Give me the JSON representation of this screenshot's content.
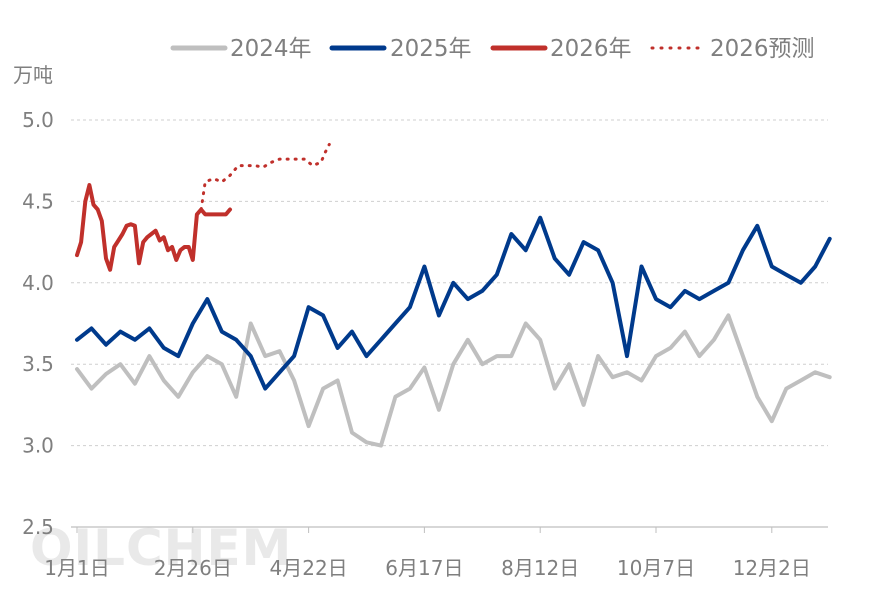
{
  "chart_data": {
    "type": "line",
    "ylabel": "万吨",
    "ylim": [
      2.5,
      5.0
    ],
    "yticks": [
      "5.0",
      "4.5",
      "4.0",
      "3.5",
      "3.0",
      "2.5"
    ],
    "xticks": [
      "1月1日",
      "2月26日",
      "4月22日",
      "6月17日",
      "8月12日",
      "10月7日",
      "12月2日"
    ],
    "grid": true,
    "legend_position": "top",
    "watermark": "OILCHEM",
    "series": [
      {
        "name": "2024年",
        "color": "#bfbfbf",
        "style": "solid",
        "x": [
          1,
          8,
          15,
          22,
          29,
          36,
          43,
          50,
          57,
          64,
          71,
          78,
          85,
          92,
          99,
          106,
          113,
          120,
          127,
          134,
          141,
          148,
          155,
          162,
          169,
          176,
          183,
          190,
          197,
          204,
          211,
          218,
          225,
          232,
          239,
          246,
          253,
          260,
          267,
          274,
          281,
          288,
          295,
          302,
          309,
          316,
          323,
          330,
          337,
          344,
          351,
          358,
          365
        ],
        "values": [
          3.47,
          3.35,
          3.44,
          3.5,
          3.38,
          3.55,
          3.4,
          3.3,
          3.45,
          3.55,
          3.5,
          3.3,
          3.75,
          3.55,
          3.58,
          3.4,
          3.12,
          3.35,
          3.4,
          3.08,
          3.02,
          3.0,
          3.3,
          3.35,
          3.48,
          3.22,
          3.5,
          3.65,
          3.5,
          3.55,
          3.55,
          3.75,
          3.65,
          3.35,
          3.5,
          3.25,
          3.55,
          3.42,
          3.45,
          3.4,
          3.55,
          3.6,
          3.7,
          3.55,
          3.65,
          3.8,
          3.55,
          3.3,
          3.15,
          3.35,
          3.4,
          3.45,
          3.42
        ]
      },
      {
        "name": "2025年",
        "color": "#003a8c",
        "style": "solid",
        "x": [
          1,
          8,
          15,
          22,
          29,
          36,
          43,
          50,
          57,
          64,
          71,
          78,
          85,
          92,
          99,
          106,
          113,
          120,
          127,
          134,
          141,
          148,
          155,
          162,
          169,
          176,
          183,
          190,
          197,
          204,
          211,
          218,
          225,
          232,
          239,
          246,
          253,
          260,
          267,
          274,
          281,
          288,
          295,
          302,
          309,
          316,
          323,
          330,
          337,
          344,
          351,
          358,
          365
        ],
        "values": [
          3.65,
          3.72,
          3.62,
          3.7,
          3.65,
          3.72,
          3.6,
          3.55,
          3.75,
          3.9,
          3.7,
          3.65,
          3.55,
          3.35,
          3.45,
          3.55,
          3.85,
          3.8,
          3.6,
          3.7,
          3.55,
          3.65,
          3.75,
          3.85,
          4.1,
          3.8,
          4.0,
          3.9,
          3.95,
          4.05,
          4.3,
          4.2,
          4.4,
          4.15,
          4.05,
          4.25,
          4.2,
          4.0,
          3.55,
          4.1,
          3.9,
          3.85,
          3.95,
          3.9,
          3.95,
          4.0,
          4.2,
          4.35,
          4.1,
          4.05,
          4.0,
          4.1,
          4.27
        ]
      },
      {
        "name": "2026年",
        "color": "#c0302b",
        "style": "solid",
        "x": [
          1,
          3,
          5,
          7,
          9,
          11,
          13,
          15,
          17,
          19,
          21,
          23,
          25,
          27,
          29,
          31,
          33,
          35,
          37,
          39,
          41,
          43,
          45,
          47,
          49,
          51,
          53,
          55,
          57,
          59,
          61,
          63,
          65,
          67,
          69,
          71,
          73,
          75
        ],
        "values": [
          4.17,
          4.25,
          4.5,
          4.6,
          4.48,
          4.45,
          4.38,
          4.15,
          4.08,
          4.22,
          4.26,
          4.3,
          4.35,
          4.36,
          4.35,
          4.12,
          4.25,
          4.28,
          4.3,
          4.32,
          4.26,
          4.28,
          4.2,
          4.22,
          4.14,
          4.2,
          4.22,
          4.22,
          4.14,
          4.42,
          4.45,
          4.42,
          4.42,
          4.42,
          4.42,
          4.42,
          4.42,
          4.45
        ]
      },
      {
        "name": "2026预测",
        "color": "#c0302b",
        "style": "dotted",
        "x": [
          61,
          63,
          67,
          71,
          75,
          79,
          83,
          87,
          91,
          95,
          99,
          103,
          107,
          111,
          115,
          119,
          121,
          123
        ],
        "values": [
          4.45,
          4.62,
          4.64,
          4.62,
          4.66,
          4.72,
          4.72,
          4.72,
          4.71,
          4.74,
          4.76,
          4.76,
          4.76,
          4.76,
          4.72,
          4.74,
          4.8,
          4.85
        ]
      }
    ]
  }
}
